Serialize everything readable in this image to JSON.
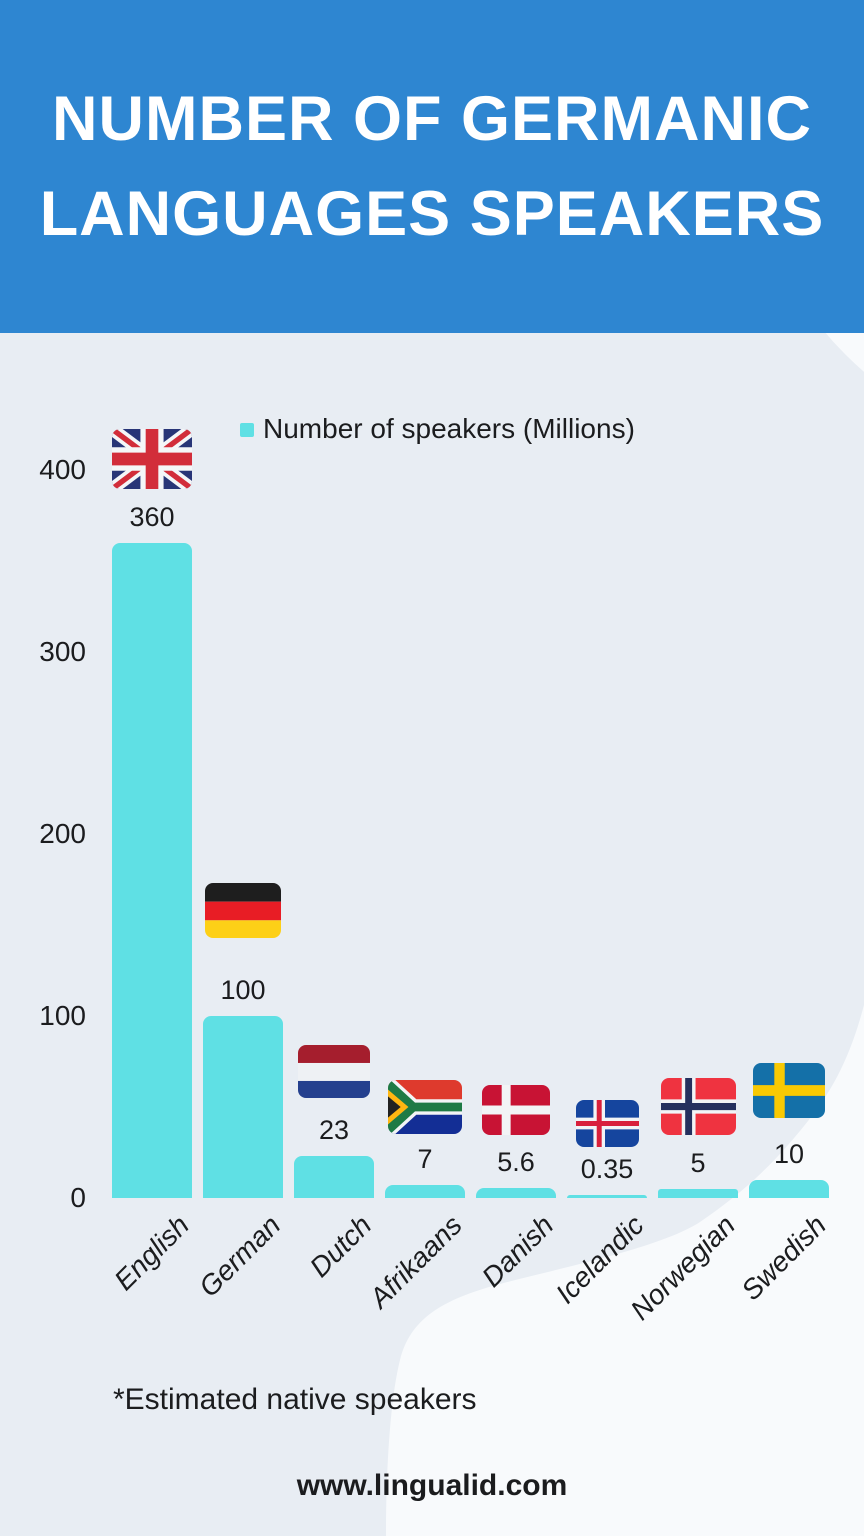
{
  "header": {
    "title_line1": "NUMBER OF GERMANIC",
    "title_line2": "LANGUAGES SPEAKERS"
  },
  "legend": {
    "label": "Number of speakers (Millions)"
  },
  "footnote": "*Estimated native speakers",
  "website": "www.lingualid.com",
  "colors": {
    "banner_blue": "#2e86d1",
    "bar_turquoise": "#5fe0e4",
    "background_gray": "#e8edf3",
    "background_white": "#f8fafc",
    "text_dark": "#1b1c1e",
    "title_white": "#ffffff"
  },
  "chart_data": {
    "type": "bar",
    "title": "Number of Germanic Languages Speakers",
    "categories": [
      "English",
      "German",
      "Dutch",
      "Afrikaans",
      "Danish",
      "Icelandic",
      "Norwegian",
      "Swedish"
    ],
    "values": [
      360,
      100,
      23,
      7,
      5.6,
      0.35,
      5,
      10
    ],
    "value_labels": [
      "360",
      "100",
      "23",
      "7",
      "5.6",
      "0.35",
      "5",
      "10"
    ],
    "series": [
      {
        "name": "Number of speakers (Millions)",
        "values": [
          360,
          100,
          23,
          7,
          5.6,
          0.35,
          5,
          10
        ]
      }
    ],
    "yticks": [
      0,
      100,
      200,
      300,
      400
    ],
    "ylim": [
      0,
      440
    ],
    "grid": false,
    "legend_position": "top-center",
    "bar_color": "#5fe0e4",
    "category_flags": [
      "flag-united-kingdom",
      "flag-germany",
      "flag-netherlands",
      "flag-south-africa",
      "flag-denmark",
      "flag-iceland",
      "flag-norway",
      "flag-sweden"
    ]
  }
}
